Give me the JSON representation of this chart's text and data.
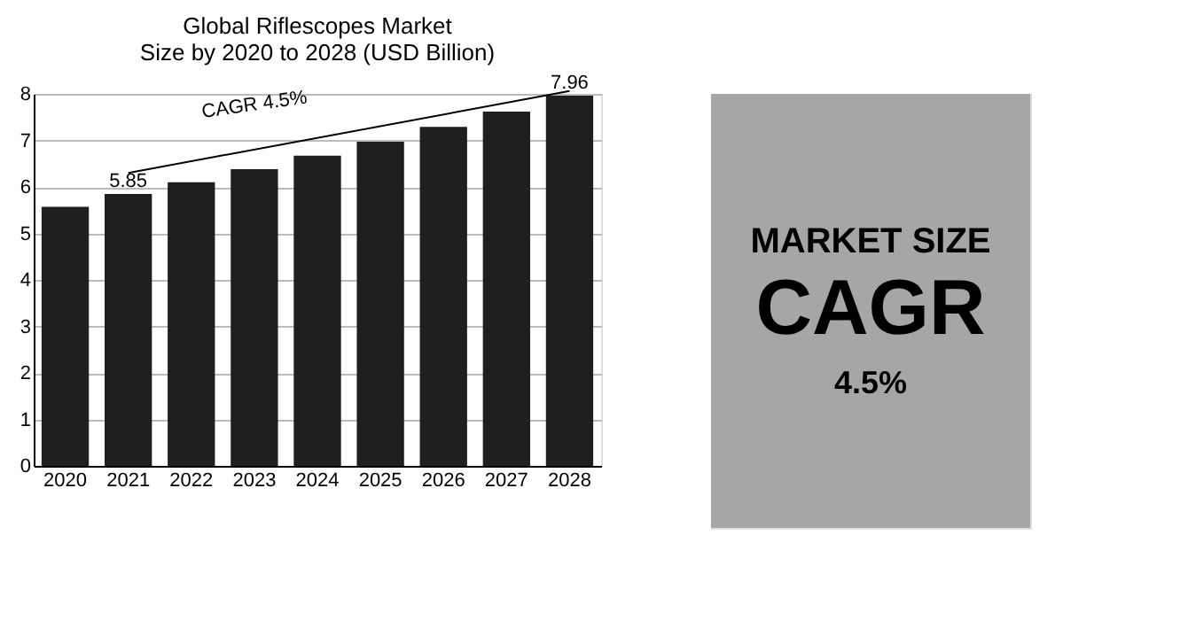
{
  "chart_data": {
    "type": "bar",
    "title": [
      "Global Riflescopes Market",
      "Size by 2020 to 2028 (USD Billion)"
    ],
    "categories": [
      "2020",
      "2021",
      "2022",
      "2023",
      "2024",
      "2025",
      "2026",
      "2027",
      "2028"
    ],
    "values": [
      5.57,
      5.85,
      6.1,
      6.38,
      6.67,
      6.97,
      7.29,
      7.62,
      7.96
    ],
    "value_labels": [
      null,
      "5.85",
      null,
      null,
      null,
      null,
      null,
      null,
      "7.96"
    ],
    "color": "#1f1f1f",
    "ylim": [
      0,
      8
    ],
    "yticks": [
      0,
      1,
      2,
      3,
      4,
      5,
      6,
      7,
      8
    ],
    "grid": "y",
    "annotations": [
      "CAGR  4.5%",
      "MARKET SIZE",
      "CAGR",
      "4.5%"
    ]
  }
}
